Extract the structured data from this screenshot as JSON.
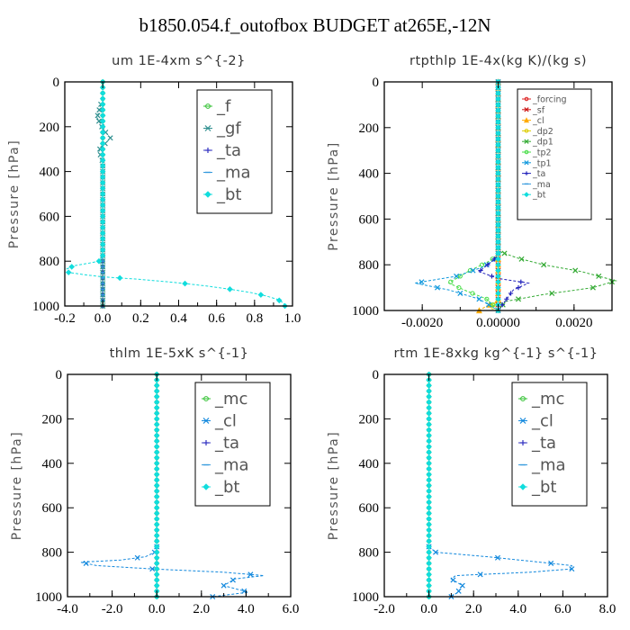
{
  "title": "b1850.054.f_outofbox  BUDGET at265E,-12N",
  "chart_data": [
    {
      "type": "line",
      "title": "um  1E-4xm s^{-2}",
      "ylabel": "Pressure [hPa]",
      "xlim": [
        -0.2,
        1.0
      ],
      "ylim": [
        1000,
        0
      ],
      "xticks": [
        -0.2,
        0.0,
        0.2,
        0.4,
        0.6,
        0.8,
        1.0
      ],
      "xticklabels": [
        "-0.2",
        "0.0",
        "0.2",
        "0.4",
        "0.6",
        "0.8",
        "1.0"
      ],
      "yticks": [
        0,
        200,
        400,
        600,
        800,
        1000
      ],
      "yticklabels": [
        "0",
        "200",
        "400",
        "600",
        "800",
        "1000"
      ],
      "legend_position": "top-right",
      "legend_size": "large",
      "series": [
        {
          "name": "_f",
          "color": "#2fc02f",
          "marker": "circle",
          "x": [
            0,
            0
          ],
          "y": [
            1000,
            0
          ]
        },
        {
          "name": "_gf",
          "color": "#2f8f8f",
          "marker": "x",
          "x": [
            -0.01,
            -0.02,
            -0.03,
            -0.01,
            0.0,
            0.02,
            0.04,
            0.02,
            -0.01,
            -0.02,
            -0.01,
            0.0,
            0.0,
            0.0
          ],
          "y": [
            100,
            130,
            160,
            190,
            210,
            230,
            250,
            270,
            290,
            310,
            330,
            360,
            400,
            1000
          ]
        },
        {
          "name": "_ta",
          "color": "#3030c0",
          "marker": "plus",
          "x": [
            0,
            0
          ],
          "y": [
            1000,
            0
          ]
        },
        {
          "name": "_ma",
          "color": "#3399dd",
          "marker": "dash",
          "x": [
            0,
            0
          ],
          "y": [
            1000,
            0
          ]
        },
        {
          "name": "_bt",
          "color": "#11dddd",
          "marker": "diamond",
          "x": [
            0.0,
            0.0,
            -0.02,
            -0.08,
            -0.15,
            -0.19,
            -0.18,
            -0.1,
            0.0,
            0.18,
            0.38,
            0.54,
            0.67,
            0.78,
            0.86,
            0.92,
            0.95,
            0.96
          ],
          "y": [
            0,
            780,
            800,
            810,
            820,
            835,
            850,
            860,
            870,
            880,
            895,
            910,
            925,
            940,
            955,
            970,
            985,
            1000
          ]
        }
      ]
    },
    {
      "type": "line",
      "title": "rtpthlp  1E-4x(kg K)/(kg s)",
      "ylabel": "Pressure [hPa]",
      "xlim": [
        -0.003,
        0.003
      ],
      "ylim": [
        1000,
        0
      ],
      "xticks": [
        -0.002,
        0.0,
        0.002
      ],
      "xticklabels": [
        "-0.0020",
        "0.00000",
        "0.0020"
      ],
      "yticks": [
        0,
        200,
        400,
        600,
        800,
        1000
      ],
      "yticklabels": [
        "0",
        "200",
        "400",
        "600",
        "800",
        "1000"
      ],
      "legend_position": "top-right",
      "legend_size": "small",
      "series": [
        {
          "name": "_forcing",
          "color": "#dd2222",
          "marker": "circle",
          "x": [
            0,
            0
          ],
          "y": [
            1000,
            0
          ]
        },
        {
          "name": "_sf",
          "color": "#cc1111",
          "marker": "x",
          "x": [
            0,
            0
          ],
          "y": [
            1000,
            0
          ]
        },
        {
          "name": "_cl",
          "color": "#ffaa00",
          "marker": "triangle",
          "x": [
            0.0,
            0.0,
            -0.0003,
            -0.0005,
            -0.0002,
            0.0
          ],
          "y": [
            0,
            960,
            980,
            1000,
            1000,
            1000
          ]
        },
        {
          "name": "_dp2",
          "color": "#ddcc00",
          "marker": "circle",
          "x": [
            0.0,
            0.0,
            -0.0002,
            0.0
          ],
          "y": [
            0,
            950,
            990,
            1000
          ]
        },
        {
          "name": "_dp1",
          "color": "#33aa33",
          "marker": "x",
          "x": [
            0.0,
            0.0,
            0.0005,
            0.0012,
            0.0022,
            0.0031,
            0.0025,
            0.0012,
            0.0002,
            0.0
          ],
          "y": [
            0,
            740,
            770,
            800,
            830,
            870,
            900,
            930,
            960,
            1000
          ]
        },
        {
          "name": "_tp2",
          "color": "#44dd44",
          "marker": "circle",
          "x": [
            0.0,
            0.0,
            -0.0003,
            -0.0008,
            -0.0013,
            -0.0009,
            -0.0003,
            0.0
          ],
          "y": [
            0,
            760,
            790,
            830,
            880,
            910,
            950,
            1000
          ]
        },
        {
          "name": "_tp1",
          "color": "#1199dd",
          "marker": "x",
          "x": [
            0.0,
            0.0,
            -0.0004,
            -0.0011,
            -0.0022,
            -0.0013,
            -0.0005,
            0.0
          ],
          "y": [
            0,
            770,
            810,
            850,
            880,
            910,
            950,
            1000
          ]
        },
        {
          "name": "_ta",
          "color": "#2222bb",
          "marker": "plus",
          "x": [
            0.0,
            0.0,
            -0.0002,
            -0.0005,
            0.0,
            0.0008,
            0.0004,
            0.0
          ],
          "y": [
            0,
            760,
            790,
            830,
            860,
            880,
            910,
            1000
          ]
        },
        {
          "name": "_ma",
          "color": "#3399dd",
          "marker": "dash",
          "x": [
            0,
            0
          ],
          "y": [
            1000,
            0
          ]
        },
        {
          "name": "_bt",
          "color": "#11dddd",
          "marker": "diamond",
          "x": [
            0,
            0
          ],
          "y": [
            1000,
            0
          ]
        }
      ]
    },
    {
      "type": "line",
      "title": "thlm  1E-5xK s^{-1}",
      "ylabel": "Pressure [hPa]",
      "xlim": [
        -4.0,
        6.0
      ],
      "ylim": [
        1000,
        0
      ],
      "xticks": [
        -4,
        -2,
        0,
        2,
        4,
        6
      ],
      "xticklabels": [
        "-4.0",
        "-2.0",
        "0.0",
        "2.0",
        "4.0",
        "6.0"
      ],
      "yticks": [
        0,
        200,
        400,
        600,
        800,
        1000
      ],
      "yticklabels": [
        "0",
        "200",
        "400",
        "600",
        "800",
        "1000"
      ],
      "legend_position": "top-right",
      "legend_size": "large",
      "series": [
        {
          "name": "_mc",
          "color": "#2fc02f",
          "marker": "circle",
          "x": [
            0,
            0
          ],
          "y": [
            1000,
            0
          ]
        },
        {
          "name": "_cl",
          "color": "#1188dd",
          "marker": "x",
          "x": [
            0.0,
            -0.1,
            -0.5,
            -1.6,
            -3.4,
            -2.7,
            -0.2,
            3.0,
            4.8,
            3.5,
            3.0,
            4.1,
            2.5
          ],
          "y": [
            775,
            800,
            820,
            835,
            845,
            860,
            875,
            890,
            905,
            920,
            950,
            980,
            1000
          ]
        },
        {
          "name": "_ta",
          "color": "#3030c0",
          "marker": "plus",
          "x": [
            0,
            0,
            0.5,
            1.8
          ],
          "y": [
            0,
            1000,
            1000,
            1000
          ]
        },
        {
          "name": "_ma",
          "color": "#3399dd",
          "marker": "dash",
          "x": [
            0,
            0
          ],
          "y": [
            1000,
            0
          ]
        },
        {
          "name": "_bt",
          "color": "#11dddd",
          "marker": "diamond",
          "x": [
            0,
            0
          ],
          "y": [
            1000,
            0
          ]
        }
      ]
    },
    {
      "type": "line",
      "title": "rtm  1E-8xkg kg^{-1} s^{-1}",
      "ylabel": "Pressure [hPa]",
      "xlim": [
        -2.0,
        8.0
      ],
      "ylim": [
        1000,
        0
      ],
      "xticks": [
        -2,
        0,
        2,
        4,
        6,
        8
      ],
      "xticklabels": [
        "-2.0",
        "0.0",
        "2.0",
        "4.0",
        "6.0",
        "8.0"
      ],
      "yticks": [
        0,
        200,
        400,
        600,
        800,
        1000
      ],
      "yticklabels": [
        "0",
        "200",
        "400",
        "600",
        "800",
        "1000"
      ],
      "legend_position": "top-right",
      "legend_size": "large",
      "series": [
        {
          "name": "_mc",
          "color": "#2fc02f",
          "marker": "circle",
          "x": [
            0,
            0
          ],
          "y": [
            1000,
            0
          ]
        },
        {
          "name": "_cl",
          "color": "#1188dd",
          "marker": "x",
          "x": [
            0.0,
            0.3,
            2.6,
            5.0,
            6.4,
            6.4,
            4.5,
            1.2,
            1.0,
            1.5,
            1.3,
            1.0
          ],
          "y": [
            775,
            800,
            820,
            845,
            860,
            875,
            890,
            905,
            920,
            950,
            980,
            1000
          ]
        },
        {
          "name": "_ta",
          "color": "#3030c0",
          "marker": "plus",
          "x": [
            0,
            0
          ],
          "y": [
            1000,
            0
          ]
        },
        {
          "name": "_ma",
          "color": "#3399dd",
          "marker": "dash",
          "x": [
            0,
            0
          ],
          "y": [
            1000,
            0
          ]
        },
        {
          "name": "_bt",
          "color": "#11dddd",
          "marker": "diamond",
          "x": [
            0,
            0
          ],
          "y": [
            1000,
            0
          ]
        }
      ]
    }
  ]
}
